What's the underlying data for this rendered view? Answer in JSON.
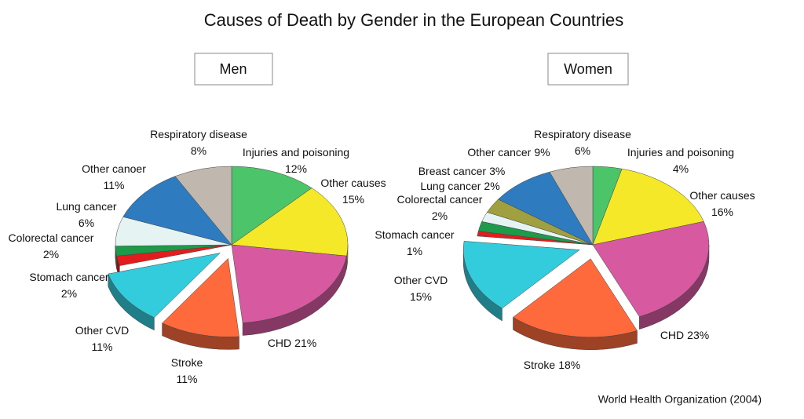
{
  "title": "Causes of Death by Gender in the European Countries",
  "source": "World Health Organization (2004)",
  "chart_data": [
    {
      "type": "pie",
      "title": "Men",
      "categories": [
        "Injuries and poisoning",
        "Other causes",
        "CHD",
        "Stroke",
        "Other CVD",
        "Stomach cancer",
        "Colorectal cancer",
        "Lung cancer",
        "Other canoer",
        "Respiratory disease"
      ],
      "values": [
        12,
        15,
        21,
        11,
        11,
        2,
        2,
        6,
        11,
        8
      ],
      "value_labels": [
        "12%",
        "15%",
        "21%",
        "11%",
        "11%",
        "2%",
        "2%",
        "6%",
        "11%",
        "8%"
      ],
      "colors": [
        "#4cc46a",
        "#f5e829",
        "#d75aa0",
        "#ff6a3d",
        "#33ccdd",
        "#e31d1d",
        "#1e9b4a",
        "#e6f3f3",
        "#2f7bc0",
        "#c0b8ae"
      ]
    },
    {
      "type": "pie",
      "title": "Women",
      "categories": [
        "Injuries and poisoning",
        "Other causes",
        "CHD",
        "Stroke",
        "Other CVD",
        "Stomach cancer",
        "Colorectal cancer",
        "Lung cancer",
        "Breast cancer",
        "Other cancer",
        "Respiratory disease"
      ],
      "values": [
        4,
        16,
        23,
        18,
        15,
        1,
        2,
        2,
        3,
        9,
        6
      ],
      "value_labels": [
        "4%",
        "16%",
        "23%",
        "18%",
        "15%",
        "1%",
        "2%",
        "2%",
        "3%",
        "9%",
        "6%"
      ],
      "colors": [
        "#4cc46a",
        "#f5e829",
        "#d75aa0",
        "#ff6a3d",
        "#33ccdd",
        "#e31d1d",
        "#1e9b4a",
        "#e6f3f3",
        "#a0a040",
        "#2f7bc0",
        "#c0b8ae"
      ]
    }
  ]
}
